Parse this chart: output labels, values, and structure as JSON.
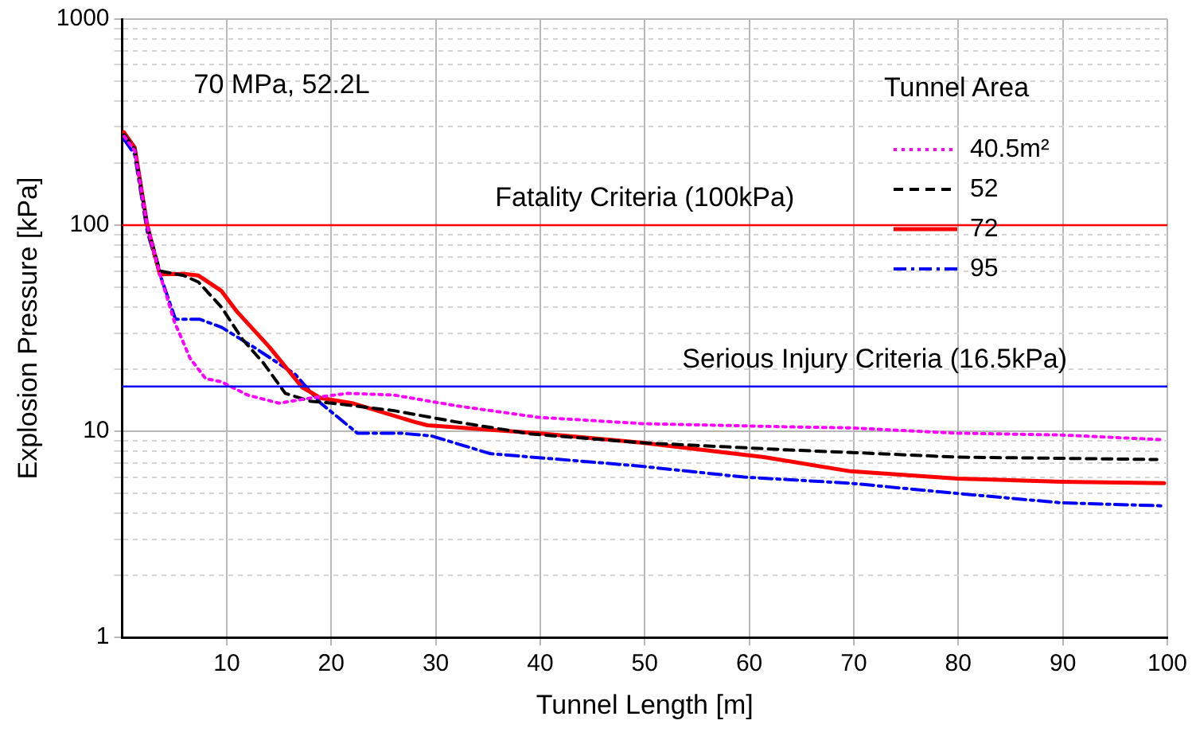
{
  "chart_data": {
    "type": "line",
    "xlabel": "Tunnel Length [m]",
    "ylabel": "Explosion Pressure [kPa]",
    "legend_title": "Tunnel Area",
    "legend": "top right",
    "grid": true,
    "log": "y",
    "marker": "none",
    "xlim": [
      0,
      100
    ],
    "xticks": [
      10,
      20,
      30,
      40,
      50,
      60,
      70,
      80,
      90,
      100
    ],
    "ylim": [
      1,
      1000
    ],
    "yticks": [
      1,
      {
        "value": 2,
        "label": null
      },
      {
        "value": 3,
        "label": null
      },
      {
        "value": 4,
        "label": null
      },
      {
        "value": 5,
        "label": null
      },
      {
        "value": 6,
        "label": null
      },
      {
        "value": 7,
        "label": null
      },
      {
        "value": 8,
        "label": null
      },
      {
        "value": 9,
        "label": null
      },
      10,
      {
        "value": 20,
        "label": null
      },
      {
        "value": 30,
        "label": null
      },
      {
        "value": 40,
        "label": null
      },
      {
        "value": 50,
        "label": null
      },
      {
        "value": 60,
        "label": null
      },
      {
        "value": 70,
        "label": null
      },
      {
        "value": 80,
        "label": null
      },
      {
        "value": 90,
        "label": null
      },
      100,
      {
        "value": 200,
        "label": null
      },
      {
        "value": 300,
        "label": null
      },
      {
        "value": 400,
        "label": null
      },
      {
        "value": 500,
        "label": null
      },
      {
        "value": 600,
        "label": null
      },
      {
        "value": 700,
        "label": null
      },
      {
        "value": 800,
        "label": null
      },
      {
        "value": 900,
        "label": null
      },
      1000
    ],
    "annotations": [
      "70 MPa, 52.2L"
    ],
    "ref_lines": [
      {
        "axis": "y",
        "value": 100,
        "label": "Fatality Criteria (100kPa)",
        "color": "#ff0000"
      },
      {
        "axis": "y",
        "value": 16.5,
        "label": "Serious Injury Criteria (16.5kPa)",
        "color": "#0000ff"
      }
    ],
    "series": [
      {
        "name": "40.5m²",
        "color": "#ff00ff",
        "line_style": "dotted",
        "x": [
          0.2,
          1.2,
          2.4,
          3.6,
          5,
          6.5,
          8,
          9.5,
          12,
          15,
          18,
          21.6,
          26,
          32,
          39.8,
          49.8,
          64.4,
          69.7,
          79.9,
          89.9,
          99.7
        ],
        "values": [
          270,
          230,
          100,
          58,
          34,
          22.6,
          18,
          17.4,
          15,
          13.7,
          14.5,
          15.3,
          15,
          13.3,
          11.7,
          10.9,
          10.5,
          10.4,
          9.8,
          9.6,
          9.1
        ]
      },
      {
        "name": "52",
        "color": "#000000",
        "line_style": "dashed",
        "x": [
          0.2,
          1.2,
          2.4,
          3.6,
          5.9,
          7.3,
          9.5,
          11.5,
          13.5,
          15.6,
          18,
          20.1,
          26,
          32,
          39.2,
          49.8,
          64.4,
          69.7,
          79.9,
          89.9,
          99
        ],
        "values": [
          275,
          235,
          100,
          60,
          57,
          53,
          40,
          28,
          21.5,
          15.3,
          14,
          13.7,
          12.6,
          11.1,
          9.7,
          8.8,
          8.1,
          7.9,
          7.5,
          7.4,
          7.3
        ]
      },
      {
        "name": "72",
        "color": "#ff0000",
        "line_style": "solid",
        "x": [
          0.15,
          1.2,
          2.4,
          3.6,
          5.9,
          7.3,
          9.5,
          11,
          14.1,
          17.2,
          19,
          22,
          28,
          29.2,
          39.8,
          49.8,
          61.4,
          69.7,
          79.9,
          89.9,
          99.7
        ],
        "values": [
          283,
          238,
          100,
          57.8,
          58,
          57,
          48,
          38,
          25.6,
          16.4,
          14.5,
          13.7,
          11.1,
          10.7,
          9.8,
          8.8,
          7.5,
          6.4,
          5.9,
          5.7,
          5.6
        ]
      },
      {
        "name": "95",
        "color": "#0000ff",
        "line_style": "dashdot",
        "x": [
          0.2,
          1.2,
          2.4,
          3.6,
          5.1,
          7.4,
          9.5,
          12.6,
          16.5,
          19,
          22.5,
          26.6,
          29.6,
          35.2,
          49.3,
          59.5,
          69.7,
          79.9,
          89.9,
          99.7
        ],
        "values": [
          260,
          220,
          93,
          58,
          35,
          35,
          32,
          25.6,
          19,
          13.7,
          9.8,
          9.8,
          9.5,
          7.8,
          6.8,
          6,
          5.6,
          5,
          4.5,
          4.35
        ]
      }
    ]
  }
}
